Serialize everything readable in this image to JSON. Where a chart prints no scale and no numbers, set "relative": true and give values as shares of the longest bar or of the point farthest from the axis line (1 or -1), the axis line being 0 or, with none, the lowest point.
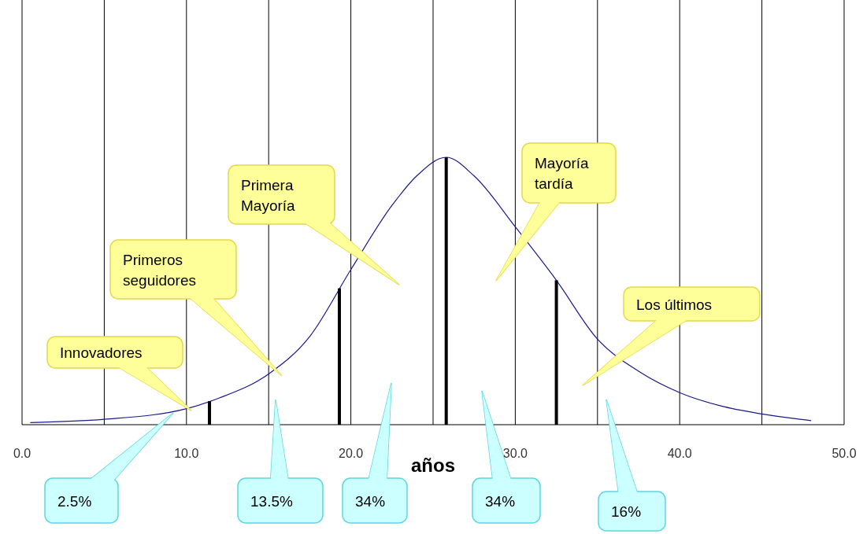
{
  "chart_data": {
    "type": "line",
    "relative": true,
    "xlabel": "años",
    "xlim": [
      0,
      50
    ],
    "xticks": [
      {
        "value": 0,
        "label": "0.0"
      },
      {
        "value": 5,
        "label": null
      },
      {
        "value": 10,
        "label": "10.0"
      },
      {
        "value": 15,
        "label": null
      },
      {
        "value": 20,
        "label": "20.0"
      },
      {
        "value": 25,
        "label": null
      },
      {
        "value": 30,
        "label": "30.0"
      },
      {
        "value": 35,
        "label": null
      },
      {
        "value": 40,
        "label": "40.0"
      },
      {
        "value": 45,
        "label": null
      },
      {
        "value": 50,
        "label": "50.0"
      }
    ],
    "grid": "x",
    "marker": "none",
    "series": [
      {
        "color": "#1a1a8c",
        "x": [
          0.5,
          5,
          10,
          12,
          15,
          17.5,
          20,
          22.5,
          24,
          25.8,
          27.5,
          30,
          32.5,
          35,
          37.5,
          40,
          42.5,
          45,
          48
        ],
        "values": [
          0.008,
          0.02,
          0.06,
          0.1,
          0.19,
          0.33,
          0.58,
          0.82,
          0.93,
          1,
          0.93,
          0.74,
          0.54,
          0.32,
          0.2,
          0.12,
          0.07,
          0.04,
          0.015
        ]
      },
      {
        "type": "bar",
        "color": "#000000",
        "x": [
          11.4,
          19.3,
          25.8,
          32.5
        ],
        "values": [
          0.088,
          0.51,
          1,
          0.54
        ]
      }
    ],
    "annotations": [
      "Innovadores",
      "Primeros\nseguidores",
      "Primera\nMayoría",
      "Mayoría\ntardía",
      "Los últimos",
      "2.5%",
      "13.5%",
      "34%",
      "34%",
      "16%"
    ]
  }
}
